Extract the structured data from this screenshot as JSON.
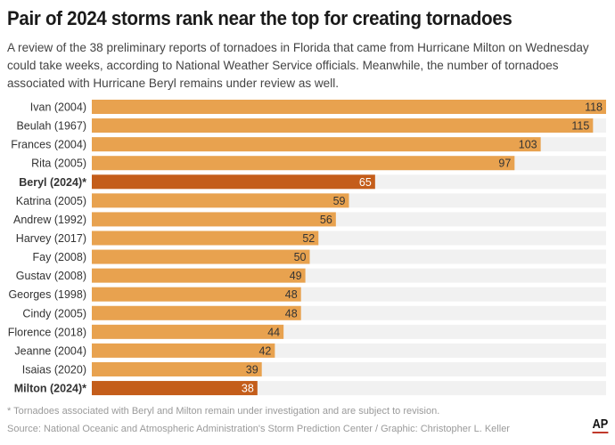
{
  "chart_data": {
    "type": "bar",
    "orientation": "horizontal",
    "title": "Pair of 2024 storms rank near the top for creating tornadoes",
    "subtitle": "A review of the 38 preliminary reports of tornadoes in Florida that came from Hurricane Milton on Wednesday could take weeks, according to National Weather Service officials. Meanwhile, the number of tornadoes associated with Hurricane Beryl remains under review as well.",
    "categories": [
      "Ivan (2004)",
      "Beulah (1967)",
      "Frances (2004)",
      "Rita (2005)",
      "Beryl (2024)*",
      "Katrina (2005)",
      "Andrew (1992)",
      "Harvey (2017)",
      "Fay (2008)",
      "Gustav (2008)",
      "Georges (1998)",
      "Cindy (2005)",
      "Florence (2018)",
      "Jeanne (2004)",
      "Isaias (2020)",
      "Milton (2024)*"
    ],
    "values": [
      118,
      115,
      103,
      97,
      65,
      59,
      56,
      52,
      50,
      49,
      48,
      48,
      44,
      42,
      39,
      38
    ],
    "highlighted": [
      "Beryl (2024)*",
      "Milton (2024)*"
    ],
    "xlim": [
      0,
      118
    ],
    "grid": false,
    "colors": {
      "bar": "#e8a24f",
      "highlight": "#c45d1a",
      "track": "#f1f1f1"
    },
    "footnote": "* Tornadoes associated with Beryl and Milton remain under investigation and are subject to revision.",
    "source": "Source: National Oceanic and Atmospheric Administration's Storm Prediction Center / Graphic: Christopher L. Keller",
    "logo": "AP"
  }
}
